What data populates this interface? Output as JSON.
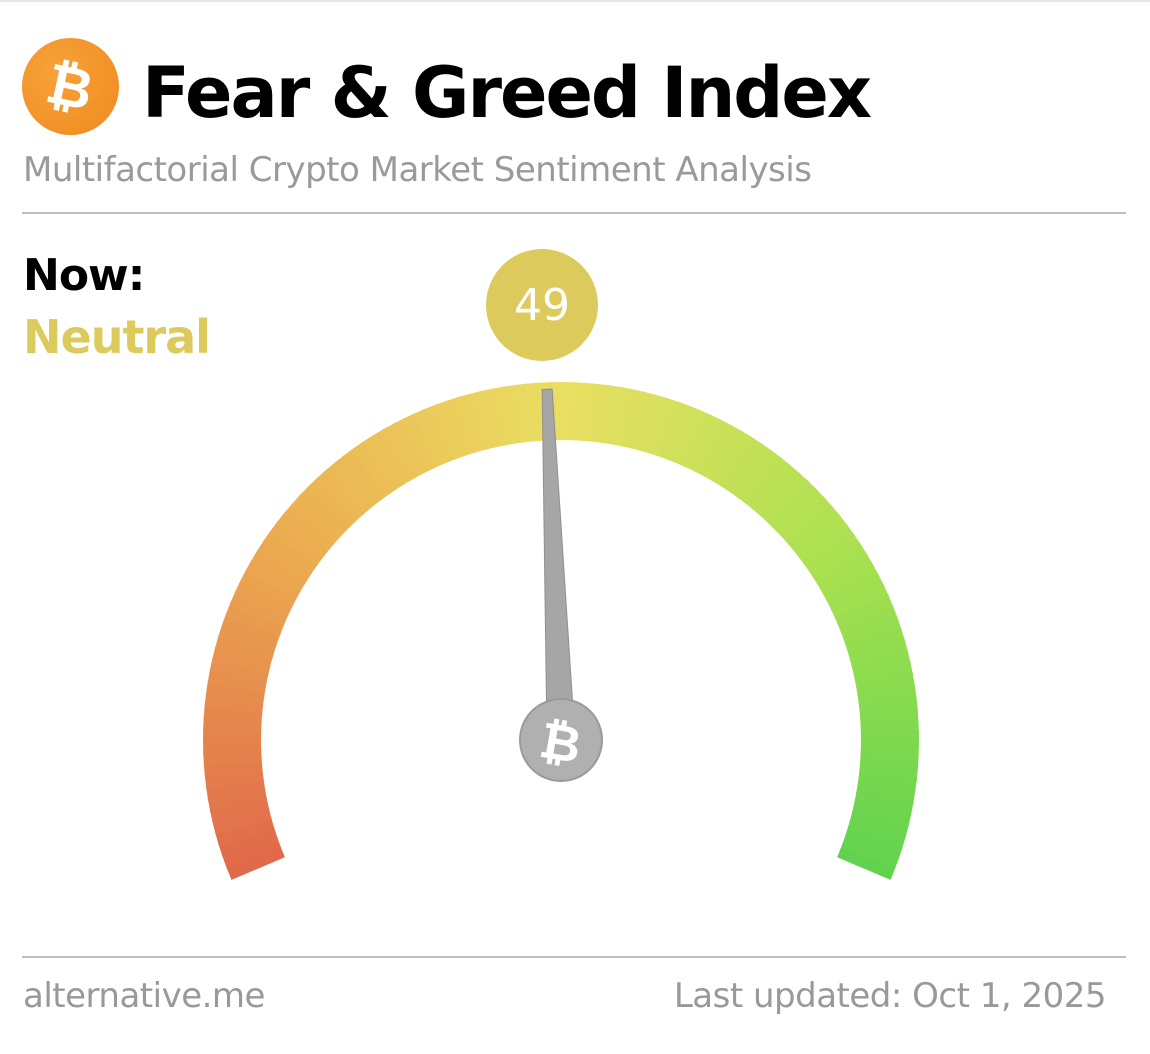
{
  "header": {
    "title": "Fear & Greed Index",
    "subtitle": "Multifactorial Crypto Market Sentiment Analysis",
    "logo_icon": "bitcoin-icon"
  },
  "current": {
    "label": "Now:",
    "classification": "Neutral",
    "value": "49"
  },
  "colors": {
    "brand": "#f29425",
    "neutral": "#dccb5c",
    "gauge_low": "#e06a4a",
    "gauge_mid": "#eadf62",
    "gauge_high": "#62d24e",
    "needle": "#a6a6a6"
  },
  "chart_data": {
    "type": "gauge",
    "value": 49,
    "min": 0,
    "max": 100,
    "classification": "Neutral"
  },
  "footer": {
    "source": "alternative.me",
    "updated": "Last updated: Oct 1, 2025"
  }
}
